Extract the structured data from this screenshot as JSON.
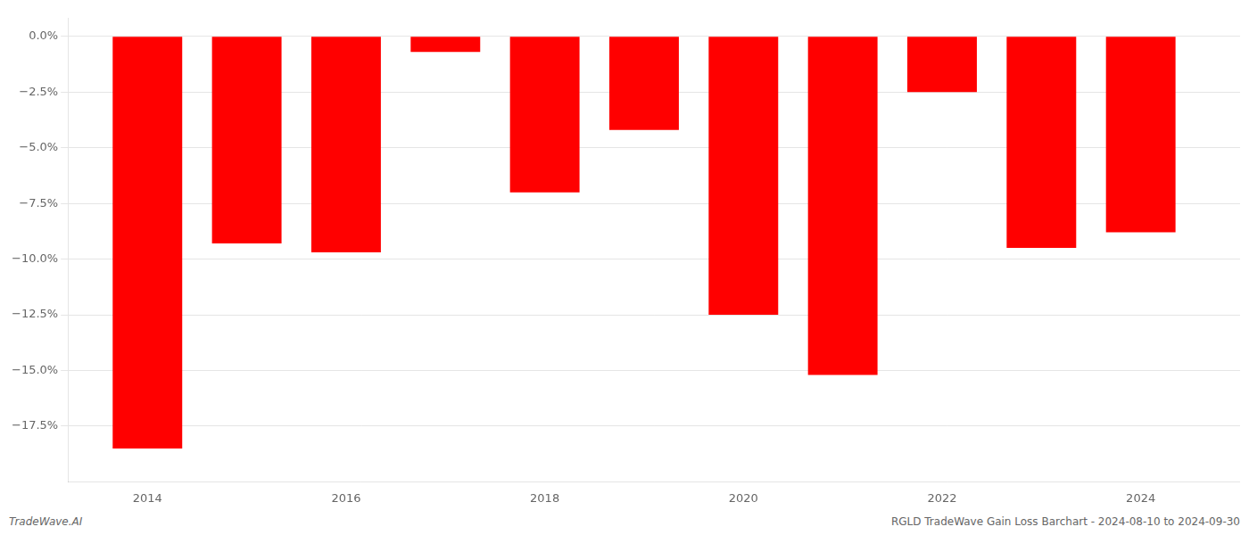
{
  "chart_data": {
    "type": "bar",
    "x": [
      2014,
      2015,
      2016,
      2017,
      2018,
      2019,
      2020,
      2021,
      2022,
      2023,
      2024
    ],
    "values": [
      -18.5,
      -9.3,
      -9.7,
      -0.7,
      -7.0,
      -4.2,
      -12.5,
      -15.2,
      -2.5,
      -9.5,
      -8.8
    ],
    "color": "#ff0000",
    "xlim": [
      2013.2,
      2025.0
    ],
    "xticks": [
      2014,
      2016,
      2018,
      2020,
      2022,
      2024
    ],
    "ylim": [
      -20.0,
      0.8
    ],
    "yticks": [
      {
        "value": 0.0,
        "label": "0.0%"
      },
      {
        "value": -2.5,
        "label": "−2.5%"
      },
      {
        "value": -5.0,
        "label": "−5.0%"
      },
      {
        "value": -7.5,
        "label": "−7.5%"
      },
      {
        "value": -10.0,
        "label": "−10.0%"
      },
      {
        "value": -12.5,
        "label": "−12.5%"
      },
      {
        "value": -15.0,
        "label": "−15.0%"
      },
      {
        "value": -17.5,
        "label": "−17.5%"
      }
    ],
    "grid": true,
    "annotations": [
      "TradeWave.AI",
      "RGLD TradeWave Gain Loss Barchart - 2024-08-10 to 2024-09-30"
    ]
  }
}
